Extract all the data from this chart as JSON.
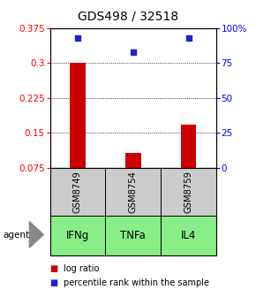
{
  "title": "GDS498 / 32518",
  "categories": [
    "IFNg",
    "TNFa",
    "IL4"
  ],
  "sample_labels": [
    "GSM8749",
    "GSM8754",
    "GSM8759"
  ],
  "bar_values": [
    0.3,
    0.107,
    0.168
  ],
  "bar_baseline": 0.075,
  "percentile_values": [
    93.0,
    83.0,
    93.0
  ],
  "left_yticks": [
    0.075,
    0.15,
    0.225,
    0.3,
    0.375
  ],
  "left_yticklabels": [
    "0.075",
    "0.15",
    "0.225",
    "0.3",
    "0.375"
  ],
  "right_yticks": [
    0,
    25,
    50,
    75,
    100
  ],
  "right_yticklabels": [
    "0",
    "25",
    "50",
    "75",
    "100%"
  ],
  "ylim_left": [
    0.075,
    0.375
  ],
  "ylim_right": [
    0,
    100
  ],
  "bar_color": "#cc0000",
  "dot_color": "#2222cc",
  "sample_box_color": "#cccccc",
  "agent_box_color": "#88ee88",
  "background_color": "#ffffff",
  "title_fontsize": 10,
  "tick_fontsize": 7.5,
  "label_fontsize": 8.5,
  "legend_fontsize": 7
}
